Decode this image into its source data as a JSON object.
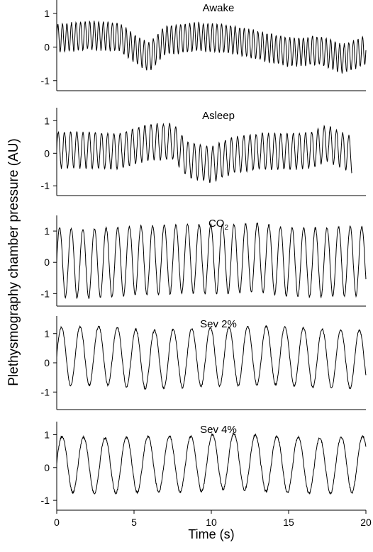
{
  "figure": {
    "ylabel": "Plethysmography chamber pressure (AU)",
    "xlabel": "Time (s)"
  },
  "chart_data": [
    {
      "type": "line",
      "title": "Awake",
      "xlim": [
        0,
        20
      ],
      "ylim": [
        -1.3,
        1.4
      ],
      "yticks": [
        -1,
        0,
        1
      ],
      "xticks": [],
      "signal": {
        "t_end": 20,
        "rate_hz": 3.4,
        "amp": 0.42,
        "baseline": [
          [
            0,
            0.25
          ],
          [
            2,
            0.35
          ],
          [
            4,
            0.3
          ],
          [
            5.5,
            -0.2
          ],
          [
            6,
            -0.3
          ],
          [
            7,
            0.2
          ],
          [
            9,
            0.3
          ],
          [
            11,
            0.25
          ],
          [
            13,
            0.05
          ],
          [
            15,
            -0.15
          ],
          [
            17,
            -0.1
          ],
          [
            18.5,
            -0.35
          ],
          [
            20,
            -0.1
          ]
        ]
      }
    },
    {
      "type": "line",
      "title": "Asleep",
      "xlim": [
        0,
        20
      ],
      "ylim": [
        -1.3,
        1.4
      ],
      "yticks": [
        -1,
        0,
        1
      ],
      "xticks": [],
      "signal": {
        "t_end": 19.1,
        "rate_hz": 2.5,
        "amp": 0.55,
        "baseline": [
          [
            0,
            0.1
          ],
          [
            2,
            0.1
          ],
          [
            4,
            0.05
          ],
          [
            6,
            0.35
          ],
          [
            7.5,
            0.35
          ],
          [
            8.5,
            -0.2
          ],
          [
            10,
            -0.35
          ],
          [
            11.5,
            -0.05
          ],
          [
            13,
            0.05
          ],
          [
            15,
            0.05
          ],
          [
            16.5,
            0.1
          ],
          [
            17.5,
            0.3
          ],
          [
            19.1,
            -0.05
          ]
        ]
      }
    },
    {
      "type": "line",
      "title": "CO",
      "title_sub": "2",
      "xlim": [
        0,
        20
      ],
      "ylim": [
        -1.4,
        1.5
      ],
      "yticks": [
        -1,
        0,
        1
      ],
      "xticks": [],
      "signal": {
        "t_end": 20,
        "rate_hz": 1.33,
        "amp": 1.1,
        "baseline": [
          [
            0,
            0
          ],
          [
            2,
            -0.05
          ],
          [
            5,
            0.05
          ],
          [
            8,
            0.1
          ],
          [
            11,
            0.1
          ],
          [
            13,
            0.15
          ],
          [
            15,
            0
          ],
          [
            17,
            0
          ],
          [
            20,
            0.05
          ]
        ]
      }
    },
    {
      "type": "line",
      "title": "Sev 2%",
      "xlim": [
        0,
        20
      ],
      "ylim": [
        -1.6,
        1.6
      ],
      "yticks": [
        -1,
        0,
        1
      ],
      "xticks": [],
      "signal": {
        "t_end": 20,
        "rate_hz": 0.83,
        "amp": 1.0,
        "baseline": [
          [
            0,
            0.2
          ],
          [
            3,
            0.25
          ],
          [
            6,
            0.1
          ],
          [
            10,
            0.2
          ],
          [
            14,
            0.25
          ],
          [
            17,
            0.15
          ],
          [
            20,
            0.1
          ]
        ]
      }
    },
    {
      "type": "line",
      "title": "Sev 4%",
      "xlim": [
        0,
        20
      ],
      "ylim": [
        -1.3,
        1.4
      ],
      "yticks": [
        -1,
        0,
        1
      ],
      "xticks": [
        0,
        5,
        10,
        15,
        20
      ],
      "signal": {
        "t_end": 20,
        "rate_hz": 0.72,
        "amp": 0.85,
        "baseline": [
          [
            0,
            0.1
          ],
          [
            3,
            0.05
          ],
          [
            6,
            0.1
          ],
          [
            9,
            0.1
          ],
          [
            11,
            0.2
          ],
          [
            14,
            0.1
          ],
          [
            17,
            0.05
          ],
          [
            20,
            0.1
          ]
        ]
      }
    }
  ],
  "colors": {
    "line": "#000000",
    "axis": "#000000"
  }
}
